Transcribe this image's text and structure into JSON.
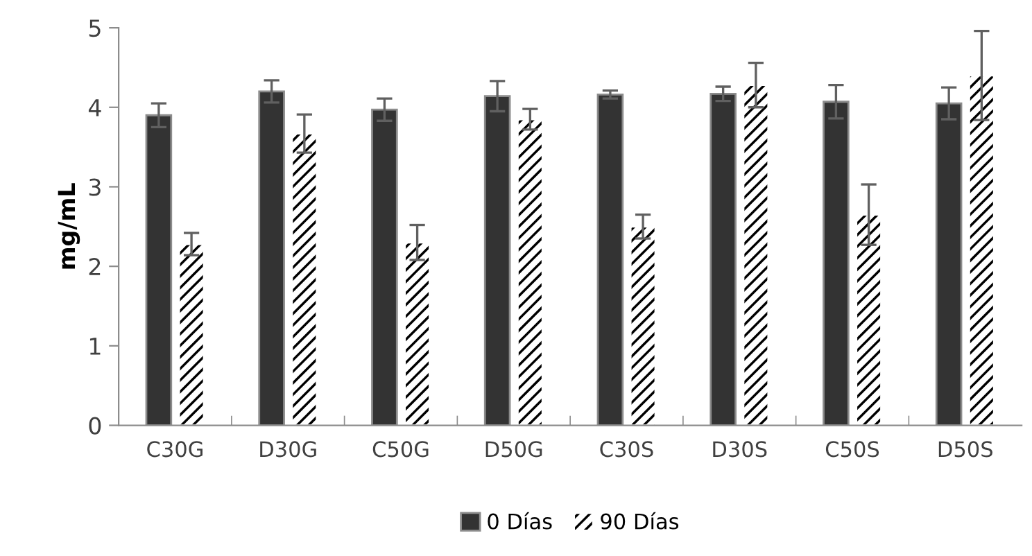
{
  "chart_data": {
    "type": "bar",
    "ylabel": "mg/mL",
    "categories": [
      "C30G",
      "D30G",
      "C50G",
      "D50G",
      "C30S",
      "D30S",
      "C50S",
      "D50S"
    ],
    "series": [
      {
        "name": "0 Días",
        "color": "#333333",
        "values": [
          3.9,
          4.2,
          3.97,
          4.14,
          4.16,
          4.17,
          4.07,
          4.05
        ],
        "errors": [
          0.15,
          0.14,
          0.14,
          0.19,
          0.05,
          0.09,
          0.21,
          0.2
        ]
      },
      {
        "name": "90 Días",
        "color": "#ffffff",
        "values": [
          2.28,
          3.67,
          2.3,
          3.85,
          2.5,
          4.28,
          2.65,
          4.4
        ],
        "errors": [
          0.14,
          0.24,
          0.22,
          0.13,
          0.15,
          0.28,
          0.38,
          0.56
        ]
      }
    ],
    "ylim": [
      0,
      5
    ],
    "yticks": [
      0,
      1,
      2,
      3,
      4,
      5
    ],
    "grid": false,
    "legend": "bottom"
  }
}
